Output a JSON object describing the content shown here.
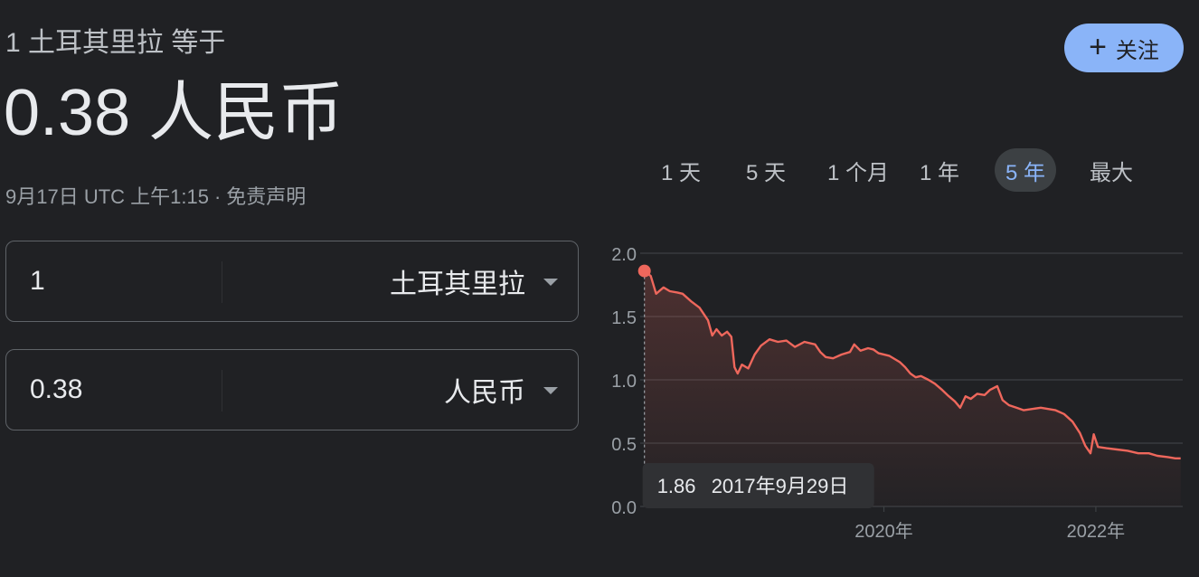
{
  "header": {
    "subtitle": "1 土耳其里拉 等于",
    "main_value": "0.38 人民币",
    "timestamp": "9月17日 UTC 上午1:15",
    "separator": "·",
    "disclaimer": "免责声明"
  },
  "follow_button": {
    "icon": "plus-icon",
    "label": "关注"
  },
  "converter": {
    "from": {
      "amount": "1",
      "currency": "土耳其里拉"
    },
    "to": {
      "amount": "0.38",
      "currency": "人民币"
    }
  },
  "range_tabs": [
    "1 天",
    "5 天",
    "1 个月",
    "1 年",
    "5 年",
    "最大"
  ],
  "active_range": "5 年",
  "tooltip": {
    "value": "1.86",
    "date": "2017年9月29日"
  },
  "colors": {
    "background": "#202124",
    "accent": "#8ab4f8",
    "line": "#ee675c",
    "grid": "#3c4043",
    "text": "#e8eaed",
    "muted": "#9aa0a6"
  },
  "chart_data": {
    "type": "area",
    "ylim": [
      0,
      2.0
    ],
    "y_ticks": [
      "0.0",
      "0.5",
      "1.0",
      "1.5",
      "2.0"
    ],
    "x_ticks": [
      {
        "label": "2020年",
        "year": 2020.0
      },
      {
        "label": "2022年",
        "year": 2022.0
      }
    ],
    "xlim": [
      2017.7,
      2022.82
    ],
    "x_unit": "year",
    "series": [
      {
        "values": [
          [
            2017.74,
            1.86
          ],
          [
            2017.8,
            1.82
          ],
          [
            2017.85,
            1.68
          ],
          [
            2017.92,
            1.73
          ],
          [
            2017.98,
            1.7
          ],
          [
            2018.05,
            1.69
          ],
          [
            2018.1,
            1.68
          ],
          [
            2018.18,
            1.62
          ],
          [
            2018.26,
            1.57
          ],
          [
            2018.3,
            1.52
          ],
          [
            2018.34,
            1.47
          ],
          [
            2018.38,
            1.35
          ],
          [
            2018.42,
            1.4
          ],
          [
            2018.47,
            1.35
          ],
          [
            2018.52,
            1.38
          ],
          [
            2018.56,
            1.34
          ],
          [
            2018.59,
            1.1
          ],
          [
            2018.62,
            1.05
          ],
          [
            2018.66,
            1.12
          ],
          [
            2018.72,
            1.09
          ],
          [
            2018.78,
            1.2
          ],
          [
            2018.84,
            1.27
          ],
          [
            2018.92,
            1.32
          ],
          [
            2019.0,
            1.3
          ],
          [
            2019.08,
            1.31
          ],
          [
            2019.16,
            1.26
          ],
          [
            2019.25,
            1.3
          ],
          [
            2019.35,
            1.28
          ],
          [
            2019.4,
            1.22
          ],
          [
            2019.45,
            1.18
          ],
          [
            2019.52,
            1.17
          ],
          [
            2019.6,
            1.2
          ],
          [
            2019.68,
            1.22
          ],
          [
            2019.72,
            1.28
          ],
          [
            2019.78,
            1.23
          ],
          [
            2019.85,
            1.25
          ],
          [
            2019.9,
            1.24
          ],
          [
            2019.95,
            1.21
          ],
          [
            2020.05,
            1.19
          ],
          [
            2020.15,
            1.14
          ],
          [
            2020.2,
            1.1
          ],
          [
            2020.25,
            1.05
          ],
          [
            2020.3,
            1.02
          ],
          [
            2020.35,
            1.03
          ],
          [
            2020.42,
            1.0
          ],
          [
            2020.48,
            0.97
          ],
          [
            2020.55,
            0.92
          ],
          [
            2020.6,
            0.88
          ],
          [
            2020.67,
            0.83
          ],
          [
            2020.72,
            0.78
          ],
          [
            2020.77,
            0.87
          ],
          [
            2020.82,
            0.85
          ],
          [
            2020.88,
            0.89
          ],
          [
            2020.95,
            0.88
          ],
          [
            2021.0,
            0.92
          ],
          [
            2021.07,
            0.95
          ],
          [
            2021.12,
            0.84
          ],
          [
            2021.18,
            0.8
          ],
          [
            2021.25,
            0.78
          ],
          [
            2021.32,
            0.76
          ],
          [
            2021.4,
            0.77
          ],
          [
            2021.48,
            0.78
          ],
          [
            2021.55,
            0.77
          ],
          [
            2021.62,
            0.76
          ],
          [
            2021.7,
            0.73
          ],
          [
            2021.78,
            0.67
          ],
          [
            2021.85,
            0.58
          ],
          [
            2021.9,
            0.48
          ],
          [
            2021.95,
            0.42
          ],
          [
            2021.98,
            0.57
          ],
          [
            2022.02,
            0.47
          ],
          [
            2022.1,
            0.46
          ],
          [
            2022.2,
            0.45
          ],
          [
            2022.3,
            0.44
          ],
          [
            2022.4,
            0.42
          ],
          [
            2022.5,
            0.42
          ],
          [
            2022.58,
            0.4
          ],
          [
            2022.68,
            0.39
          ],
          [
            2022.75,
            0.38
          ],
          [
            2022.8,
            0.38
          ]
        ]
      }
    ],
    "highlight": {
      "x": 2017.74,
      "y": 1.86
    }
  }
}
